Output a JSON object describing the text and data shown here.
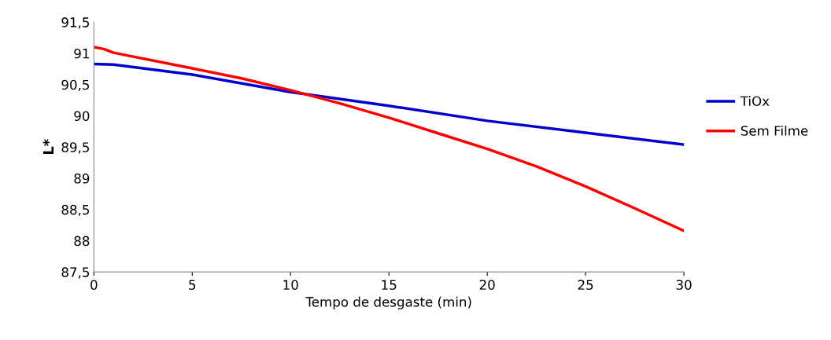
{
  "chart_data": {
    "type": "line",
    "xlabel": "Tempo de desgaste (min)",
    "ylabel": "L*",
    "xlim": [
      0,
      30
    ],
    "xticks": [
      0,
      5,
      10,
      15,
      20,
      25,
      30
    ],
    "ylim": [
      87.5,
      91.5
    ],
    "yticks": [
      {
        "value": 87.5,
        "label": "87,5"
      },
      88,
      {
        "value": 88.5,
        "label": "88,5"
      },
      89,
      {
        "value": 89.5,
        "label": "89,5"
      },
      90,
      {
        "value": 90.5,
        "label": "90,5"
      },
      91,
      {
        "value": 91.5,
        "label": "91,5"
      }
    ],
    "grid": false,
    "legend": "right",
    "marker": "none",
    "line_style": "solid",
    "series": [
      {
        "name": "TiOx",
        "color": "#0000cc",
        "x": [
          0,
          1,
          5,
          10,
          15,
          20,
          25,
          30
        ],
        "values": [
          90.83,
          90.82,
          90.66,
          90.38,
          90.16,
          89.92,
          89.73,
          89.54
        ]
      },
      {
        "name": "Sem Filme",
        "color": "#ff0000",
        "x": [
          0,
          0.5,
          1,
          5,
          7.5,
          10,
          12.5,
          15,
          17.5,
          20,
          22.5,
          25,
          27.5,
          30
        ],
        "values": [
          91.1,
          91.07,
          91.01,
          90.76,
          90.6,
          90.41,
          90.2,
          89.97,
          89.72,
          89.47,
          89.19,
          88.87,
          88.52,
          88.16
        ]
      }
    ]
  }
}
